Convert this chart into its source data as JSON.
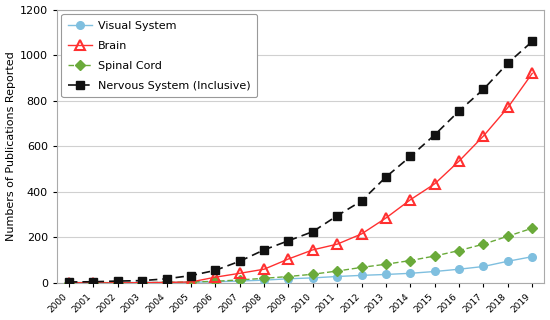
{
  "years": [
    2000,
    2001,
    2002,
    2003,
    2004,
    2005,
    2006,
    2007,
    2008,
    2009,
    2010,
    2011,
    2012,
    2013,
    2014,
    2015,
    2016,
    2017,
    2018,
    2019
  ],
  "visual_system": [
    2,
    1,
    1,
    2,
    2,
    3,
    5,
    8,
    12,
    18,
    22,
    28,
    33,
    37,
    42,
    50,
    60,
    72,
    95,
    115
  ],
  "brain": [
    1,
    0,
    0,
    1,
    2,
    4,
    25,
    42,
    60,
    105,
    145,
    170,
    215,
    285,
    365,
    435,
    535,
    645,
    770,
    920
  ],
  "spinal_cord": [
    1,
    1,
    1,
    1,
    2,
    4,
    7,
    13,
    20,
    28,
    38,
    52,
    68,
    82,
    98,
    118,
    142,
    170,
    205,
    240
  ],
  "nervous_system": [
    4,
    5,
    8,
    10,
    18,
    32,
    55,
    95,
    145,
    185,
    225,
    295,
    360,
    465,
    555,
    650,
    755,
    850,
    965,
    1060
  ],
  "ylabel": "Numbers of Publications Reported",
  "ylim": [
    0,
    1200
  ],
  "yticks": [
    0,
    200,
    400,
    600,
    800,
    1000,
    1200
  ],
  "colors": {
    "visual_system": "#7fbfdf",
    "brain": "#ff3030",
    "spinal_cord": "#6aaa3a",
    "nervous_system": "#111111"
  },
  "legend_labels": [
    "Visual System",
    "Brain",
    "Spinal Cord",
    "Nervous System (Inclusive)"
  ],
  "bg_color": "#ffffff"
}
